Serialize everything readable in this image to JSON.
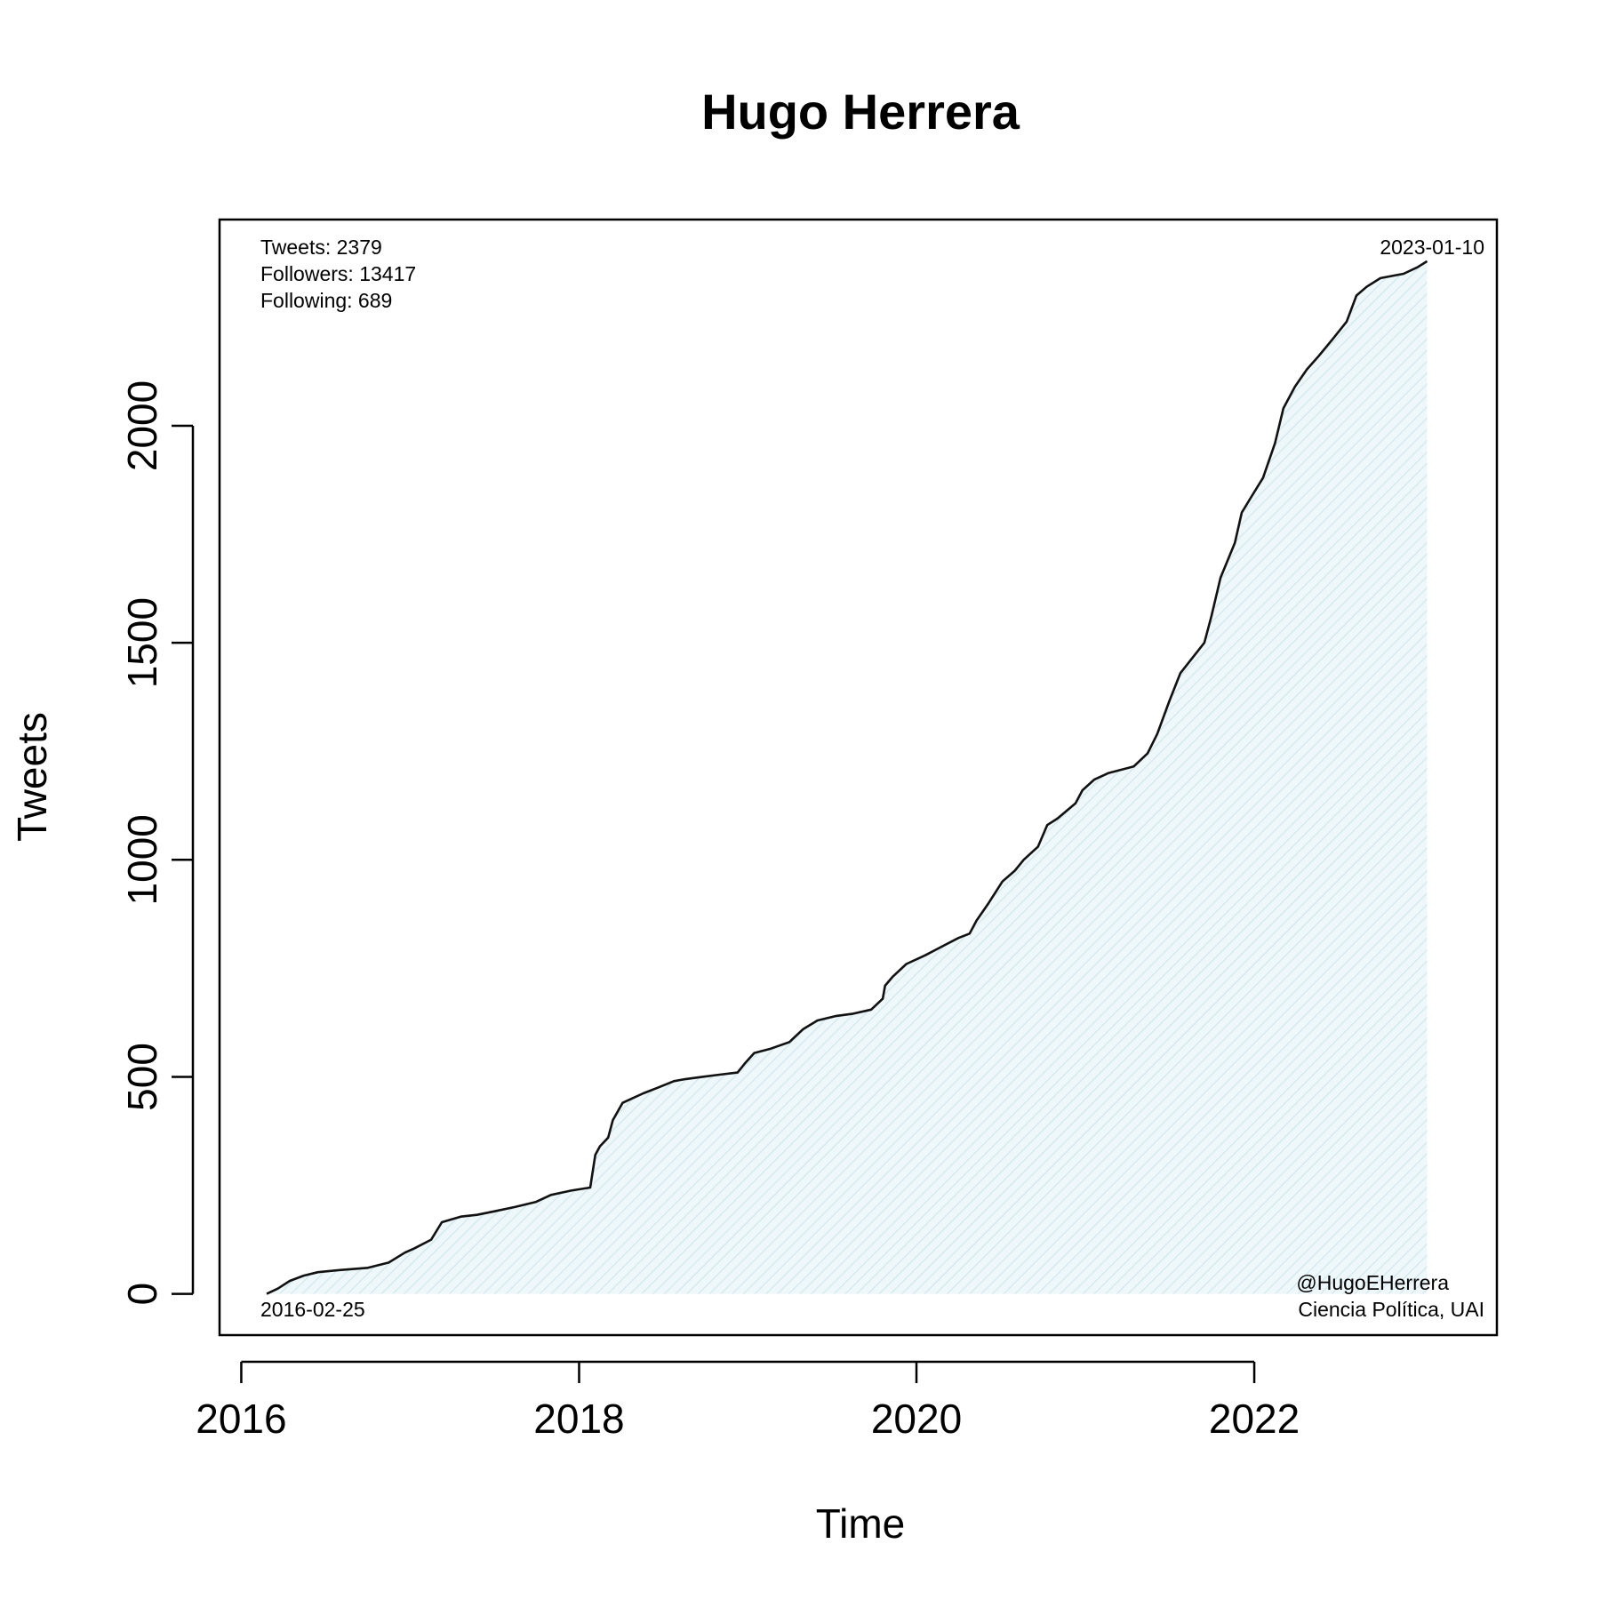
{
  "chart_data": {
    "type": "area",
    "title": "Hugo Herrera",
    "xlabel": "Time",
    "ylabel": "Tweets",
    "xlim": [
      "2015-11-15",
      "2023-06-10"
    ],
    "ylim": [
      -95,
      2475
    ],
    "x_ticks": [
      {
        "date": "2016-01-01",
        "label": "2016"
      },
      {
        "date": "2018-01-01",
        "label": "2018"
      },
      {
        "date": "2020-01-01",
        "label": "2020"
      },
      {
        "date": "2022-01-01",
        "label": "2022"
      }
    ],
    "y_ticks": [
      0,
      500,
      1000,
      1500,
      2000
    ],
    "grid": false,
    "fill_color": "#e6f2f5",
    "line_color": "#111111",
    "annotations": {
      "stats": [
        "Tweets: 2379",
        "Followers: 13417",
        "Following: 689"
      ],
      "start_date": "2016-02-25",
      "end_date": "2023-01-10",
      "credit": [
        "@HugoEHerrera",
        "Ciencia Política, UAI"
      ]
    },
    "series": [
      {
        "x": [
          "2016-02-25",
          "2016-03-20",
          "2016-04-15",
          "2016-05-15",
          "2016-06-15",
          "2016-08-01",
          "2016-10-01",
          "2016-11-15",
          "2016-12-20",
          "2017-01-10",
          "2017-02-15",
          "2017-03-10",
          "2017-04-01",
          "2017-04-20",
          "2017-05-25",
          "2017-07-01",
          "2017-08-15",
          "2017-09-30",
          "2017-11-01",
          "2017-12-15",
          "2018-01-25",
          "2018-02-05",
          "2018-02-15",
          "2018-03-05",
          "2018-03-15",
          "2018-04-05",
          "2018-04-25",
          "2018-05-20",
          "2018-06-20",
          "2018-07-25",
          "2018-08-20",
          "2018-09-25",
          "2018-11-01",
          "2018-12-10",
          "2018-12-25",
          "2019-01-15",
          "2019-02-20",
          "2019-04-01",
          "2019-05-01",
          "2019-06-01",
          "2019-07-10",
          "2019-08-15",
          "2019-09-25",
          "2019-10-20",
          "2019-10-25",
          "2019-11-10",
          "2019-12-10",
          "2020-01-20",
          "2020-02-25",
          "2020-04-01",
          "2020-04-25",
          "2020-05-10",
          "2020-06-05",
          "2020-07-05",
          "2020-08-01",
          "2020-08-20",
          "2020-09-20",
          "2020-10-10",
          "2020-11-01",
          "2020-12-10",
          "2020-12-25",
          "2021-01-20",
          "2021-02-20",
          "2021-04-15",
          "2021-05-15",
          "2021-06-05",
          "2021-07-01",
          "2021-07-25",
          "2021-08-20",
          "2021-09-15",
          "2021-09-30",
          "2021-10-20",
          "2021-11-20",
          "2021-12-05",
          "2021-12-25",
          "2022-01-20",
          "2022-02-15",
          "2022-03-05",
          "2022-03-30",
          "2022-04-25",
          "2022-05-20",
          "2022-06-20",
          "2022-07-20",
          "2022-08-10",
          "2022-09-01",
          "2022-10-01",
          "2022-11-20",
          "2022-12-20",
          "2023-01-10"
        ],
        "y": [
          0,
          12,
          30,
          42,
          50,
          55,
          60,
          72,
          95,
          105,
          125,
          165,
          172,
          178,
          182,
          190,
          200,
          212,
          228,
          238,
          245,
          320,
          340,
          360,
          400,
          440,
          450,
          462,
          475,
          490,
          495,
          500,
          505,
          510,
          530,
          555,
          565,
          580,
          610,
          630,
          640,
          645,
          655,
          680,
          710,
          730,
          760,
          780,
          800,
          820,
          830,
          860,
          900,
          950,
          975,
          1000,
          1030,
          1080,
          1095,
          1130,
          1160,
          1185,
          1200,
          1215,
          1245,
          1290,
          1365,
          1430,
          1465,
          1500,
          1560,
          1650,
          1730,
          1800,
          1835,
          1880,
          1960,
          2040,
          2090,
          2130,
          2160,
          2200,
          2240,
          2300,
          2320,
          2340,
          2350,
          2365,
          2379
        ]
      }
    ]
  }
}
